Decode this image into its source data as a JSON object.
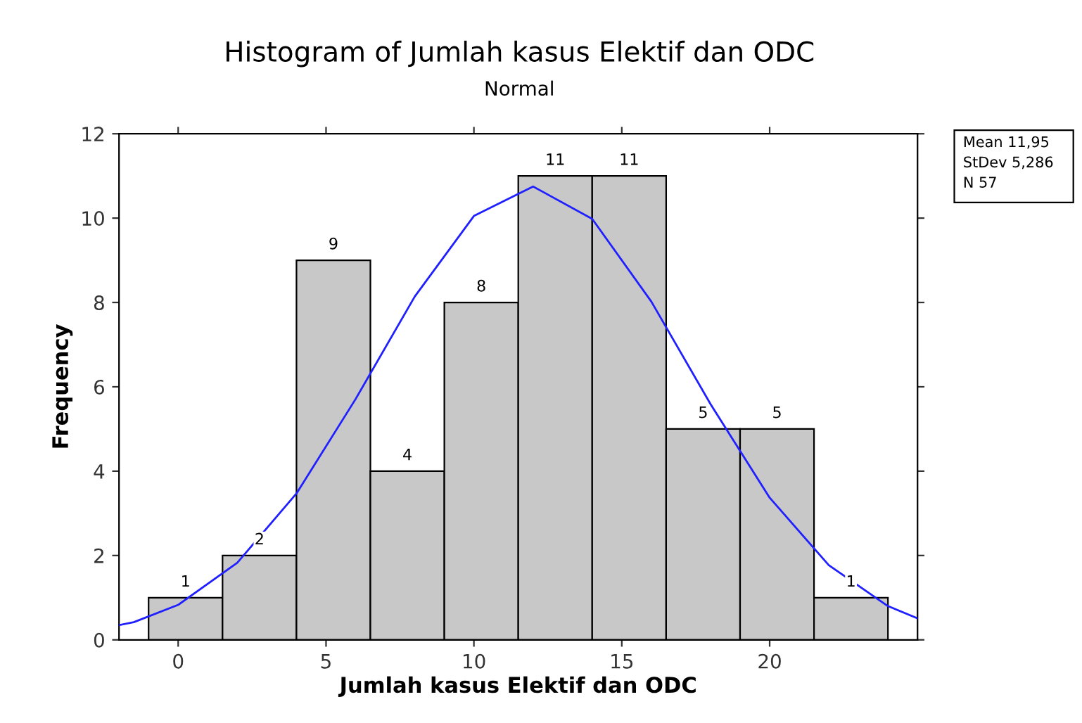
{
  "chart_data": {
    "type": "histogram",
    "title": "Histogram of Jumlah kasus Elektif dan ODC",
    "subtitle": "Normal",
    "xlabel": "Jumlah kasus Elektif dan ODC",
    "ylabel": "Frequency",
    "bins": [
      -1,
      1.5,
      4,
      6.5,
      9,
      11.5,
      14,
      16.5,
      19,
      21.5,
      24
    ],
    "values": [
      1,
      2,
      9,
      4,
      8,
      11,
      11,
      5,
      5,
      1
    ],
    "color": "#c8c8c8",
    "value_labels": [
      "1",
      "2",
      "9",
      "4",
      "8",
      "11",
      "11",
      "5",
      "5",
      "1"
    ],
    "series": [
      {
        "type": "line",
        "color": "#2020ff",
        "x": [
          -2,
          -1.5,
          0,
          2,
          4,
          6,
          8,
          10,
          12,
          14,
          16,
          18,
          20,
          22,
          24,
          25
        ],
        "values": [
          0.35,
          0.42,
          0.83,
          1.83,
          3.47,
          5.71,
          8.14,
          10.05,
          10.75,
          9.98,
          8.02,
          5.59,
          3.37,
          1.77,
          0.8,
          0.51
        ]
      }
    ],
    "xlim": [
      -2,
      25
    ],
    "xticks": [
      0,
      5,
      10,
      15,
      20
    ],
    "ylim": [
      0,
      12
    ],
    "yticks": [
      0,
      2,
      4,
      6,
      8,
      10,
      12
    ],
    "grid": false,
    "legend": false,
    "annotations": [
      "Mean 11,95",
      "StDev 5,286",
      "N 57"
    ]
  }
}
